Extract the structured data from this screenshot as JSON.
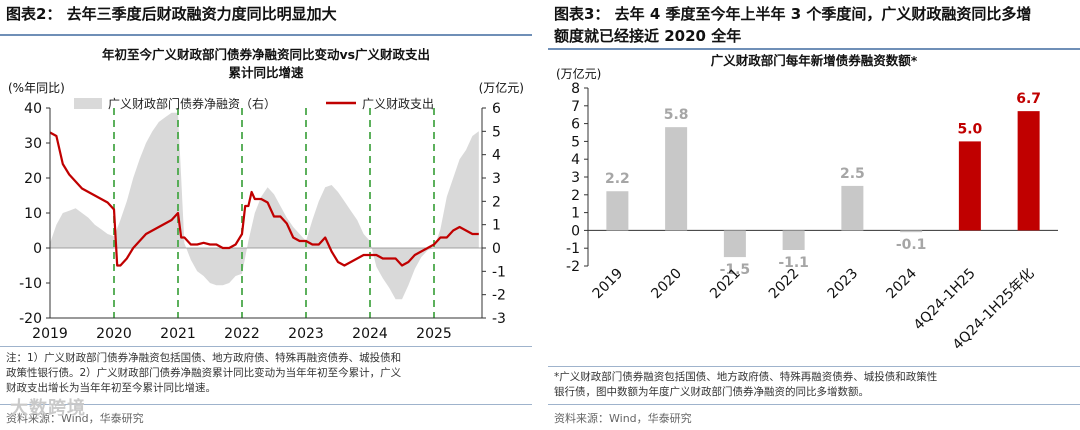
{
  "left": {
    "figure_title": "图表2： 去年三季度后财政融资力度同比明显加大",
    "chart_title_line1": "年初至今广义财政部门债券净融资同比变动vs广义财政支出",
    "chart_title_line2": "累计同比增速",
    "notes": [
      "注：1）广义财政部门债券净融资包括国债、地方政府债、特殊再融资债券、城投债和",
      "政策性银行债。2）广义财政部门债券净融资累计同比变动为当年年初至今累计，广义",
      "财政支出增长为当年年初至今累计同比增速。"
    ],
    "source": "资料来源：Wind，华泰研究"
  },
  "right": {
    "figure_title_line1": "图表3： 去年 4 季度至今年上半年 3 个季度间，广义财政融资同比多增",
    "figure_title_line2": "额度就已经接近 2020 全年",
    "chart_title": "广义财政部门每年新增债券融资数额*",
    "note_lines": [
      "*广义财政部门债券融资包括国债、地方政府债、特殊再融资债券、城投债和政策性",
      "银行债，图中数额为年度广义财政部门债券净融资的同比多增数额。"
    ],
    "source": "资料来源：Wind，华泰研究"
  },
  "watermark": "大数跨境",
  "colors": {
    "gray_bar": "#c8c8c8",
    "red": "#c00000",
    "area": "#d9d9d9",
    "dash": "#4aa84a",
    "label_gray": "#a6a6a6"
  },
  "chart_data": [
    {
      "type": "line",
      "left_axis_label": "(%年同比)",
      "right_axis_label": "(万亿元)",
      "ylim_left": [
        -20,
        40
      ],
      "yticks_left": [
        -20,
        -10,
        0,
        10,
        20,
        30,
        40
      ],
      "ylim_right": [
        -3,
        6
      ],
      "yticks_right": [
        -3,
        -2,
        -1,
        0,
        1,
        2,
        3,
        4,
        5,
        6
      ],
      "x_ticks": [
        "2019",
        "2020",
        "2021",
        "2022",
        "2023",
        "2024",
        "2025"
      ],
      "x_range": [
        2019.0,
        2025.75
      ],
      "year_dividers": [
        2020,
        2021,
        2022,
        2023,
        2024,
        2025
      ],
      "series": [
        {
          "name": "广义财政部门债券净融资（右）",
          "type": "area",
          "axis": "right",
          "x": [
            2019.0,
            2019.1,
            2019.2,
            2019.3,
            2019.4,
            2019.5,
            2019.6,
            2019.7,
            2019.8,
            2019.9,
            2020.0,
            2020.1,
            2020.2,
            2020.3,
            2020.4,
            2020.5,
            2020.6,
            2020.7,
            2020.8,
            2020.9,
            2021.0,
            2021.1,
            2021.2,
            2021.3,
            2021.4,
            2021.5,
            2021.6,
            2021.7,
            2021.8,
            2021.9,
            2022.0,
            2022.1,
            2022.2,
            2022.3,
            2022.4,
            2022.5,
            2022.6,
            2022.7,
            2022.8,
            2022.9,
            2023.0,
            2023.1,
            2023.2,
            2023.3,
            2023.4,
            2023.5,
            2023.6,
            2023.7,
            2023.8,
            2023.9,
            2024.0,
            2024.1,
            2024.2,
            2024.3,
            2024.4,
            2024.5,
            2024.6,
            2024.7,
            2024.8,
            2024.9,
            2025.0,
            2025.1,
            2025.2,
            2025.3,
            2025.4,
            2025.5,
            2025.6,
            2025.7
          ],
          "values": [
            0.2,
            1.0,
            1.5,
            1.6,
            1.7,
            1.5,
            1.3,
            1.0,
            0.8,
            0.6,
            0.5,
            1.2,
            2.0,
            3.0,
            3.8,
            4.5,
            5.0,
            5.4,
            5.6,
            5.8,
            5.8,
            0.2,
            -0.5,
            -1.0,
            -1.2,
            -1.5,
            -1.6,
            -1.6,
            -1.5,
            -1.2,
            -1.1,
            0.3,
            1.5,
            2.2,
            2.6,
            2.3,
            1.8,
            1.3,
            0.9,
            0.6,
            0.3,
            1.2,
            2.0,
            2.6,
            2.7,
            2.4,
            2.0,
            1.6,
            1.2,
            0.6,
            0.3,
            -0.8,
            -1.3,
            -1.7,
            -2.2,
            -2.2,
            -1.6,
            -0.9,
            -0.4,
            -0.1,
            0.0,
            0.8,
            2.2,
            3.0,
            3.8,
            4.2,
            4.8,
            5.0
          ]
        },
        {
          "name": "广义财政支出",
          "type": "line",
          "axis": "left",
          "x": [
            2019.0,
            2019.1,
            2019.2,
            2019.3,
            2019.4,
            2019.5,
            2019.6,
            2019.7,
            2019.8,
            2019.9,
            2020.0,
            2020.05,
            2020.1,
            2020.2,
            2020.3,
            2020.4,
            2020.5,
            2020.6,
            2020.7,
            2020.8,
            2020.9,
            2021.0,
            2021.05,
            2021.1,
            2021.2,
            2021.3,
            2021.4,
            2021.5,
            2021.6,
            2021.7,
            2021.8,
            2021.9,
            2022.0,
            2022.05,
            2022.1,
            2022.15,
            2022.2,
            2022.3,
            2022.4,
            2022.5,
            2022.6,
            2022.7,
            2022.8,
            2022.9,
            2023.0,
            2023.1,
            2023.2,
            2023.3,
            2023.4,
            2023.5,
            2023.6,
            2023.7,
            2023.8,
            2023.9,
            2024.0,
            2024.1,
            2024.2,
            2024.3,
            2024.4,
            2024.5,
            2024.6,
            2024.7,
            2024.8,
            2024.9,
            2025.0,
            2025.1,
            2025.2,
            2025.3,
            2025.4,
            2025.5,
            2025.6,
            2025.7
          ],
          "values": [
            33,
            32,
            24,
            21,
            19,
            17,
            16,
            15,
            14,
            13,
            11,
            -5,
            -5,
            -3,
            0,
            2,
            4,
            5,
            6,
            7,
            8,
            10,
            3,
            3,
            1,
            1,
            1.5,
            1,
            1,
            0,
            0,
            1,
            4,
            12,
            12,
            16,
            14,
            14,
            13,
            9,
            9,
            7,
            3,
            2,
            2,
            1,
            1,
            3,
            -1,
            -4,
            -5,
            -4,
            -3,
            -2,
            -2,
            -2,
            -3,
            -3,
            -3,
            -5,
            -4,
            -2,
            -1,
            0,
            1,
            3,
            3,
            5,
            6,
            5,
            4,
            4
          ]
        }
      ]
    },
    {
      "type": "bar",
      "ylabel": "(万亿元)",
      "ylim": [
        -2,
        8
      ],
      "yticks": [
        -2,
        -1,
        0,
        1,
        2,
        3,
        4,
        5,
        6,
        7,
        8
      ],
      "categories": [
        "2019",
        "2020",
        "2021",
        "2022",
        "2023",
        "2024",
        "4Q24-1H25",
        "4Q24-1H25年化"
      ],
      "values": [
        2.2,
        5.8,
        -1.5,
        -1.1,
        2.5,
        -0.1,
        5.0,
        6.7
      ],
      "labels": [
        "2.2",
        "5.8",
        "-1.5",
        "-1.1",
        "2.5",
        "-0.1",
        "5.0",
        "6.7"
      ],
      "highlight": [
        false,
        false,
        false,
        false,
        false,
        false,
        true,
        true
      ]
    }
  ]
}
